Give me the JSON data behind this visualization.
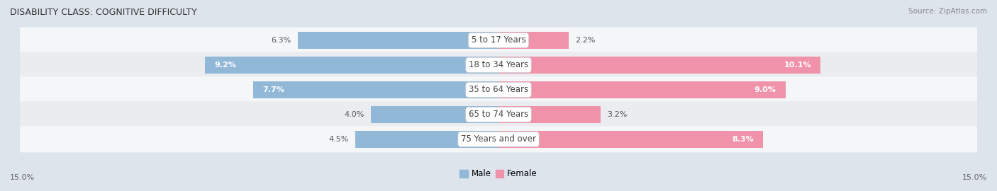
{
  "title": "DISABILITY CLASS: COGNITIVE DIFFICULTY",
  "source": "Source: ZipAtlas.com",
  "categories": [
    "5 to 17 Years",
    "18 to 34 Years",
    "35 to 64 Years",
    "65 to 74 Years",
    "75 Years and over"
  ],
  "male_values": [
    6.3,
    9.2,
    7.7,
    4.0,
    4.5
  ],
  "female_values": [
    2.2,
    10.1,
    9.0,
    3.2,
    8.3
  ],
  "male_color": "#92b8d8",
  "female_color": "#f093aa",
  "male_label": "Male",
  "female_label": "Female",
  "max_val": 15.0,
  "axis_label_left": "15.0%",
  "axis_label_right": "15.0%",
  "row_colors": [
    "#e8edf2",
    "#dde4ec"
  ],
  "background_color": "#dde4ec",
  "title_fontsize": 9,
  "label_fontsize": 8,
  "category_fontsize": 8.5,
  "source_fontsize": 7.5
}
